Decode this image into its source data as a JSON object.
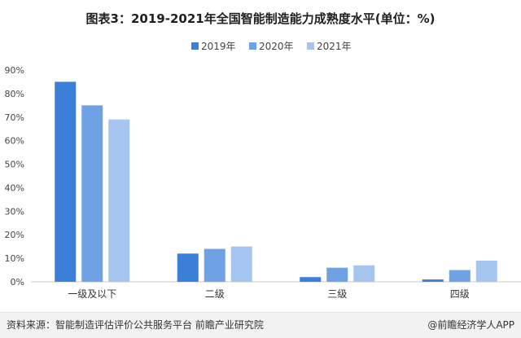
{
  "chart_data": {
    "type": "bar",
    "title": "图表3：2019-2021年全国智能制造能力成熟度水平(单位：%)",
    "categories": [
      "一级及以下",
      "二级",
      "三级",
      "四级"
    ],
    "series": [
      {
        "name": "2019年",
        "color": "#3b7fd9",
        "values": [
          85,
          12,
          2,
          1
        ]
      },
      {
        "name": "2020年",
        "color": "#6fa2e5",
        "values": [
          75,
          14,
          6,
          5
        ]
      },
      {
        "name": "2021年",
        "color": "#a5c5f0",
        "values": [
          69,
          15,
          7,
          9
        ]
      }
    ],
    "ylim": [
      0,
      90
    ],
    "yticks": [
      "0%",
      "10%",
      "20%",
      "30%",
      "40%",
      "50%",
      "60%",
      "70%",
      "80%",
      "90%"
    ],
    "grid": false,
    "legend_position": "top-center"
  },
  "footer": {
    "source": "资料来源：智能制造评估评价公共服务平台 前瞻产业研究院",
    "brand": "@前瞻经济学人APP"
  }
}
